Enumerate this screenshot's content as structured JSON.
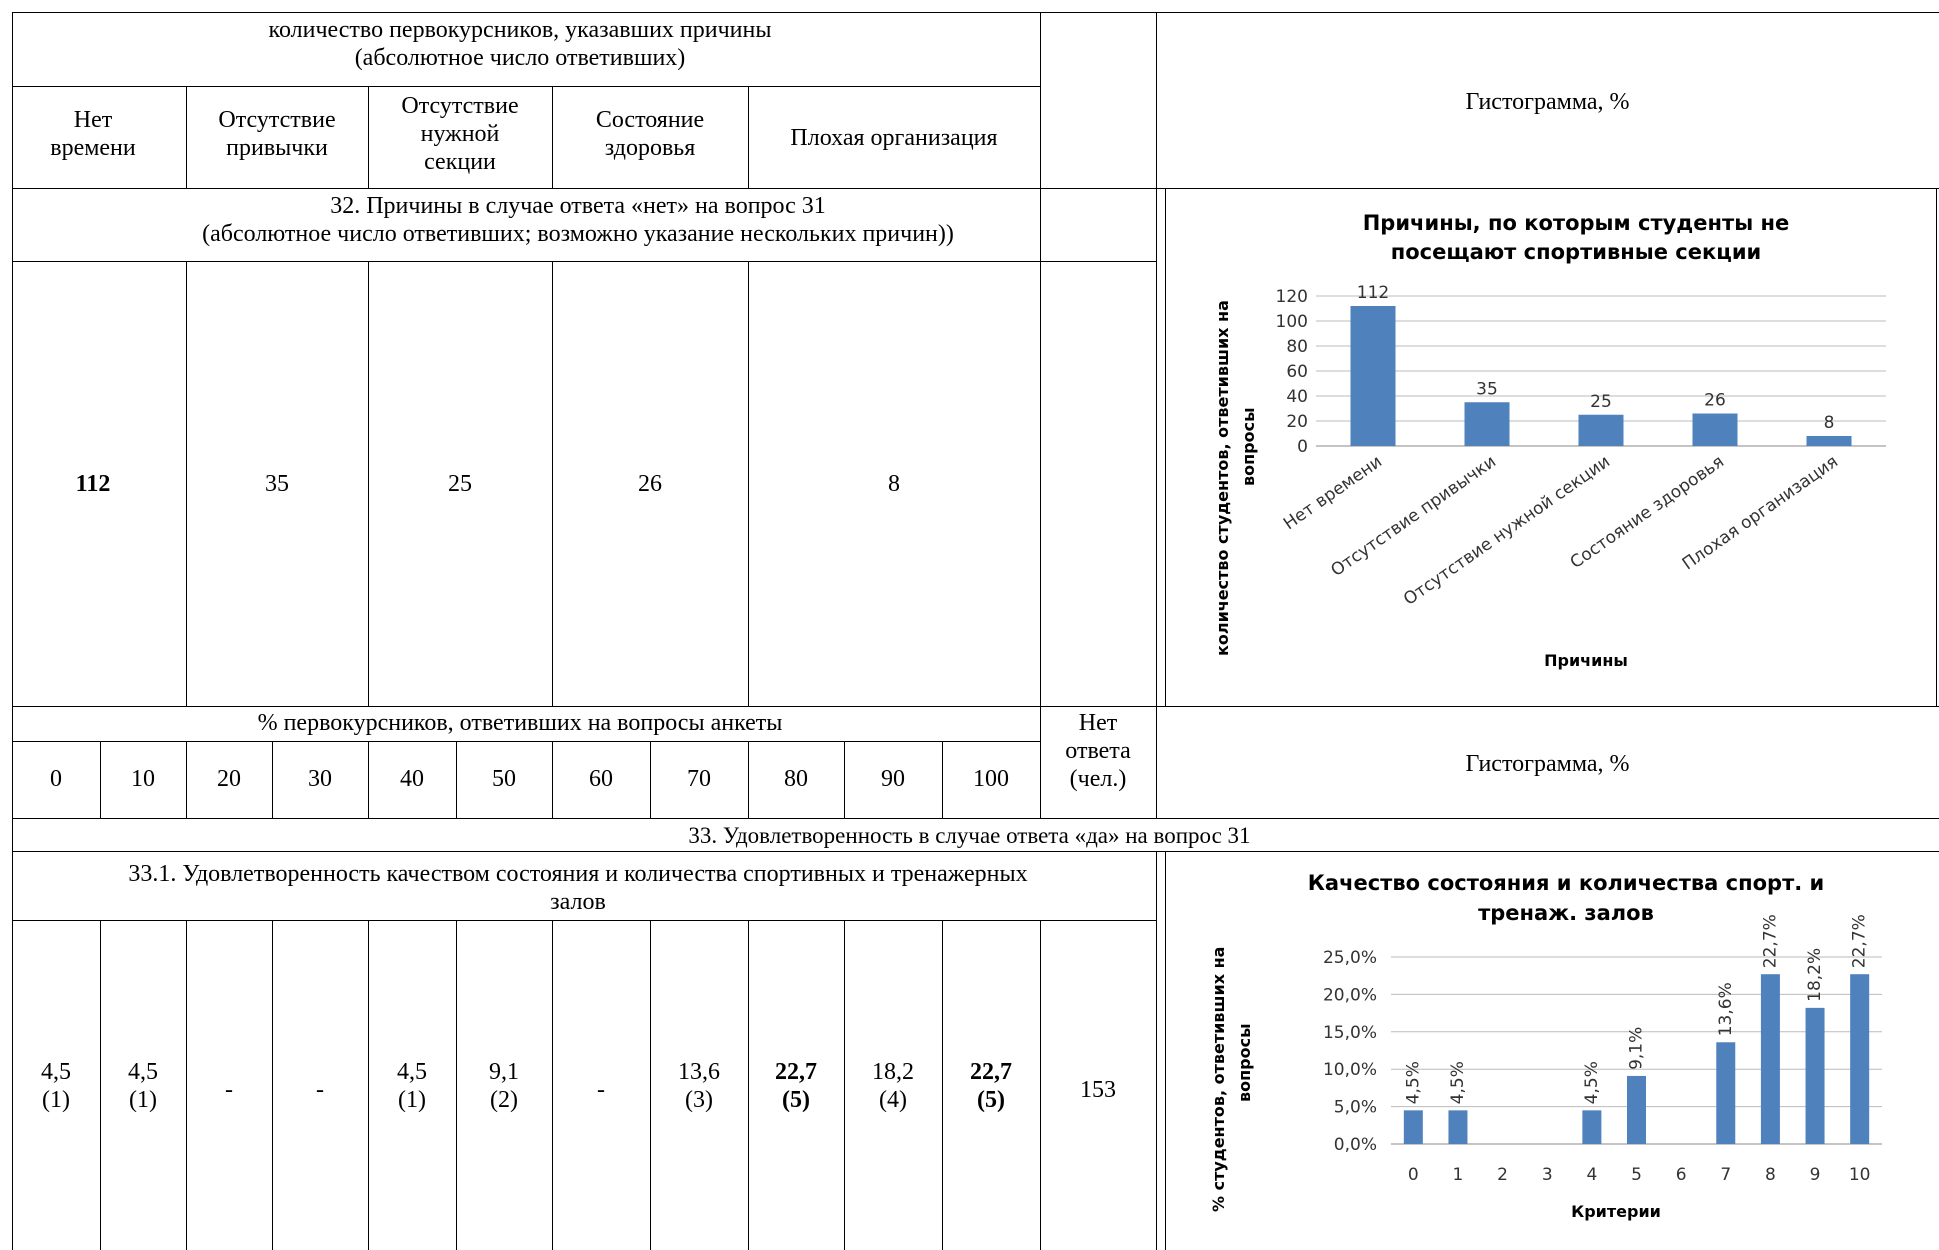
{
  "table": {
    "section1": {
      "header": "количество первокурсников, указавших причины\n(абсолютное число ответивших)",
      "columns": [
        "Нет\nвремени",
        "Отсутствие\nпривычки",
        "Отсутствие\nнужной\nсекции",
        "Состояние\nздоровья",
        "Плохая организация"
      ],
      "histogram_label": "Гистограмма, %"
    },
    "q32": {
      "title": "32. Причины в случае ответа «нет» на вопрос 31\n(абсолютное число ответивших; возможно указание нескольких причин))",
      "values": [
        "112",
        "35",
        "25",
        "26",
        "8"
      ]
    },
    "section2": {
      "header": "% первокурсников, ответивших на вопросы анкеты",
      "no_answer": "Нет\nответа\n(чел.)",
      "scale": [
        "0",
        "10",
        "20",
        "30",
        "40",
        "50",
        "60",
        "70",
        "80",
        "90",
        "100"
      ],
      "histogram_label": "Гистограмма, %"
    },
    "q33": {
      "title": "33. Удовлетворенность в случае ответа «да» на вопрос 31"
    },
    "q33_1": {
      "title": "33.1. Удовлетворенность качеством состояния и количества спортивных и тренажерных\nзалов",
      "values": [
        {
          "v": "4,5",
          "n": "(1)"
        },
        {
          "v": "4,5",
          "n": "(1)"
        },
        {
          "v": "-",
          "n": ""
        },
        {
          "v": "-",
          "n": ""
        },
        {
          "v": "4,5",
          "n": "(1)"
        },
        {
          "v": "9,1",
          "n": "(2)"
        },
        {
          "v": "-",
          "n": ""
        },
        {
          "v": "13,6",
          "n": "(3)"
        },
        {
          "v": "22,7",
          "n": "(5)"
        },
        {
          "v": "18,2",
          "n": "(4)"
        },
        {
          "v": "22,7",
          "n": "(5)"
        }
      ],
      "bold_indexes": [
        8,
        10
      ],
      "no_answer": "153"
    }
  },
  "chart_data": [
    {
      "type": "bar",
      "title": "Причины, по которым студенты не\nпосещают спортивные секции",
      "xlabel": "Причины",
      "ylabel": "количество студентов, ответивших на\nвопросы",
      "categories": [
        "Нет времени",
        "Отсутствие привычки",
        "Отсутствие нужной секции",
        "Состояние здоровья",
        "Плохая организация"
      ],
      "values": [
        112,
        35,
        25,
        26,
        8
      ],
      "data_labels": [
        "112",
        "35",
        "25",
        "26",
        "8"
      ],
      "yticks": [
        "0",
        "20",
        "40",
        "60",
        "80",
        "100",
        "120"
      ],
      "ylim": [
        0,
        120
      ],
      "grid": true,
      "color": "#4f81bd"
    },
    {
      "type": "bar",
      "title": "Качество состояния и количества спорт. и\nтренаж. залов",
      "xlabel": "Критерии",
      "ylabel": "% студентов, ответивших на\nвопросы",
      "categories": [
        "0",
        "1",
        "2",
        "3",
        "4",
        "5",
        "6",
        "7",
        "8",
        "9",
        "10"
      ],
      "values": [
        4.5,
        4.5,
        null,
        null,
        4.5,
        9.1,
        null,
        13.6,
        22.7,
        18.2,
        22.7
      ],
      "data_labels": [
        "4,5%",
        "4,5%",
        "",
        "",
        "4,5%",
        "9,1%",
        "",
        "13,6%",
        "22,7%",
        "18,2%",
        "22,7%"
      ],
      "yticks": [
        "0,0%",
        "5,0%",
        "10,0%",
        "15,0%",
        "20,0%",
        "25,0%"
      ],
      "ylim": [
        0,
        25
      ],
      "grid": true,
      "color": "#4f81bd"
    }
  ]
}
